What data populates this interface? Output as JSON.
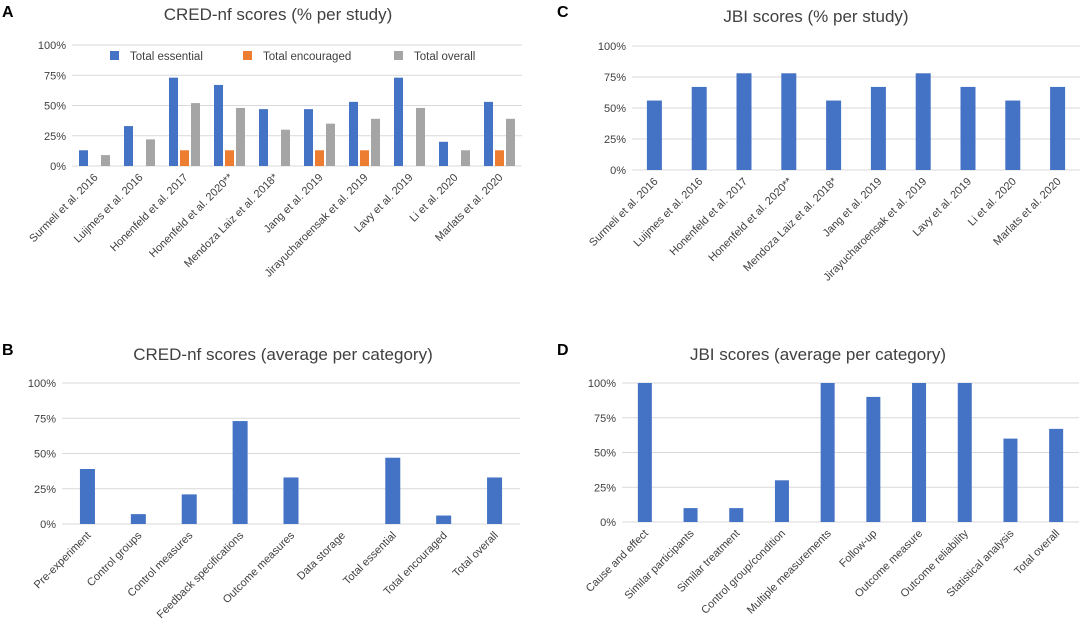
{
  "colors": {
    "essential": "#4472c4",
    "encouraged": "#ed7d31",
    "overall": "#a5a5a5",
    "grid": "#d9d9d9",
    "text": "#404040"
  },
  "chart_data": [
    {
      "id": "A",
      "panel_label": "A",
      "type": "bar",
      "title": "CRED-nf scores (% per study)",
      "xlabel": "",
      "ylabel": "",
      "ylim": [
        0,
        100
      ],
      "yticks": [
        "0%",
        "25%",
        "50%",
        "75%",
        "100%"
      ],
      "legend": "top-center",
      "categories": [
        "Surmeli et al. 2016",
        "Luijmes et al. 2016",
        "Honenfeld et al. 2017",
        "Honenfeld et al. 2020**",
        "Mendoza Laiz et al. 2018*",
        "Jang et al. 2019",
        "Jirayucharoensak et al. 2019",
        "Lavy et al. 2019",
        "Li et al. 2020",
        "Marlats et al. 2020"
      ],
      "series": [
        {
          "name": "Total essential",
          "color": "essential",
          "values": [
            13,
            33,
            73,
            67,
            47,
            47,
            53,
            73,
            20,
            53
          ]
        },
        {
          "name": "Total encouraged",
          "color": "encouraged",
          "values": [
            0,
            0,
            13,
            13,
            0,
            13,
            13,
            0,
            0,
            13
          ]
        },
        {
          "name": "Total overall",
          "color": "overall",
          "values": [
            9,
            22,
            52,
            48,
            30,
            35,
            39,
            48,
            13,
            39
          ]
        }
      ]
    },
    {
      "id": "B",
      "panel_label": "B",
      "type": "bar",
      "title": "CRED-nf scores (average per category)",
      "xlabel": "",
      "ylabel": "",
      "ylim": [
        0,
        100
      ],
      "yticks": [
        "0%",
        "25%",
        "50%",
        "75%",
        "100%"
      ],
      "categories": [
        "Pre-experiment",
        "Control groups",
        "Control measures",
        "Feedback specifications",
        "Outcome measures",
        "Data storage",
        "Total essential",
        "Total encouraged",
        "Total overall"
      ],
      "series": [
        {
          "name": "Average",
          "color": "essential",
          "values": [
            39,
            7,
            21,
            73,
            33,
            0,
            47,
            6,
            33
          ]
        }
      ]
    },
    {
      "id": "C",
      "panel_label": "C",
      "type": "bar",
      "title": "JBI scores (% per study)",
      "xlabel": "",
      "ylabel": "",
      "ylim": [
        0,
        100
      ],
      "yticks": [
        "0%",
        "25%",
        "50%",
        "75%",
        "100%"
      ],
      "categories": [
        "Surmeli et al. 2016",
        "Luijmes et al. 2016",
        "Honenfeld et al. 2017",
        "Honenfeld et al. 2020**",
        "Mendoza Laiz et al. 2018*",
        "Jang et al. 2019",
        "Jirayucharoensak et al. 2019",
        "Lavy et al. 2019",
        "Li et al. 2020",
        "Marlats et al. 2020"
      ],
      "series": [
        {
          "name": "JBI",
          "color": "essential",
          "values": [
            56,
            67,
            78,
            78,
            56,
            67,
            78,
            67,
            56,
            67
          ]
        }
      ]
    },
    {
      "id": "D",
      "panel_label": "D",
      "type": "bar",
      "title": "JBI scores (average per category)",
      "xlabel": "",
      "ylabel": "",
      "ylim": [
        0,
        100
      ],
      "yticks": [
        "0%",
        "25%",
        "50%",
        "75%",
        "100%"
      ],
      "categories": [
        "Cause and effect",
        "Similar participants",
        "Similar treatment",
        "Control group/condition",
        "Multiple measurements",
        "Follow-up",
        "Outcome measure",
        "Outcome reliability",
        "Statistical analysis",
        "Total overall"
      ],
      "series": [
        {
          "name": "Average",
          "color": "essential",
          "values": [
            100,
            10,
            10,
            30,
            100,
            90,
            100,
            100,
            60,
            67
          ]
        }
      ]
    }
  ]
}
